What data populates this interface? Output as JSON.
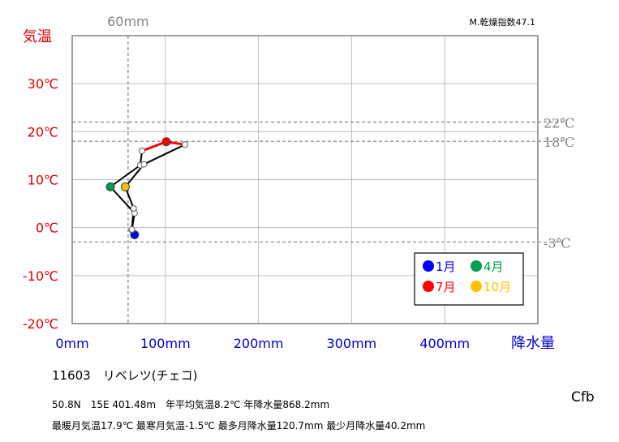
{
  "chart_data": {
    "type": "line",
    "top_note": "M.乾燥指数47.1",
    "y_title": "気温",
    "x_title": "降水量",
    "xlim": [
      0,
      500
    ],
    "ylim": [
      -20,
      40
    ],
    "y_ticks": [
      {
        "value": 30,
        "label": "30℃"
      },
      {
        "value": 20,
        "label": "20℃"
      },
      {
        "value": 10,
        "label": "10℃"
      },
      {
        "value": 0,
        "label": "0℃"
      },
      {
        "value": -10,
        "label": "-10℃"
      },
      {
        "value": -20,
        "label": "-20℃"
      }
    ],
    "x_ticks": [
      {
        "value": 0,
        "label": "0mm"
      },
      {
        "value": 100,
        "label": "100mm"
      },
      {
        "value": 200,
        "label": "200mm"
      },
      {
        "value": 300,
        "label": "300mm"
      },
      {
        "value": 400,
        "label": "400mm"
      }
    ],
    "ref_lines_y": [
      {
        "value": 22,
        "label": "22℃"
      },
      {
        "value": 18,
        "label": "18℃"
      },
      {
        "value": -3,
        "label": "-3℃"
      }
    ],
    "ref_line_x": {
      "value": 60,
      "label": "60mm"
    },
    "points": [
      {
        "month": 1,
        "precip": 67,
        "temp": -1.5
      },
      {
        "month": 2,
        "precip": 64,
        "temp": -0.5
      },
      {
        "month": 3,
        "precip": 67,
        "temp": 3.0
      },
      {
        "month": 4,
        "precip": 41,
        "temp": 8.5
      },
      {
        "month": 5,
        "precip": 73,
        "temp": 13.0
      },
      {
        "month": 6,
        "precip": 75,
        "temp": 16.0
      },
      {
        "month": 7,
        "precip": 101,
        "temp": 17.9
      },
      {
        "month": 8,
        "precip": 121,
        "temp": 17.3
      },
      {
        "month": 9,
        "precip": 77,
        "temp": 13.2
      },
      {
        "month": 10,
        "precip": 57,
        "temp": 8.5
      },
      {
        "month": 11,
        "precip": 66,
        "temp": 4.0
      },
      {
        "month": 12,
        "precip": 64,
        "temp": -0.4
      }
    ],
    "legend": [
      {
        "label": "1月",
        "color": "#0000ff"
      },
      {
        "label": "4月",
        "color": "#00a050"
      },
      {
        "label": "7月",
        "color": "#ff0000"
      },
      {
        "label": "10月",
        "color": "#ffc000"
      }
    ],
    "colors": {
      "temp_axis": "#e00000",
      "precip_axis": "#0000cc",
      "ref": "#808080",
      "summer_line": "#ff0000",
      "line": "#000000"
    }
  },
  "station": {
    "title": "11603　リベレツ(チェコ)",
    "line1": "50.8N　15E 401.48m　年平均気温8.2℃ 年降水量868.2mm",
    "line2": "最暖月気温17.9℃ 最寒月気温-1.5℃ 最多月降水量120.7mm 最少月降水量40.2mm",
    "climate_code": "Cfb"
  }
}
